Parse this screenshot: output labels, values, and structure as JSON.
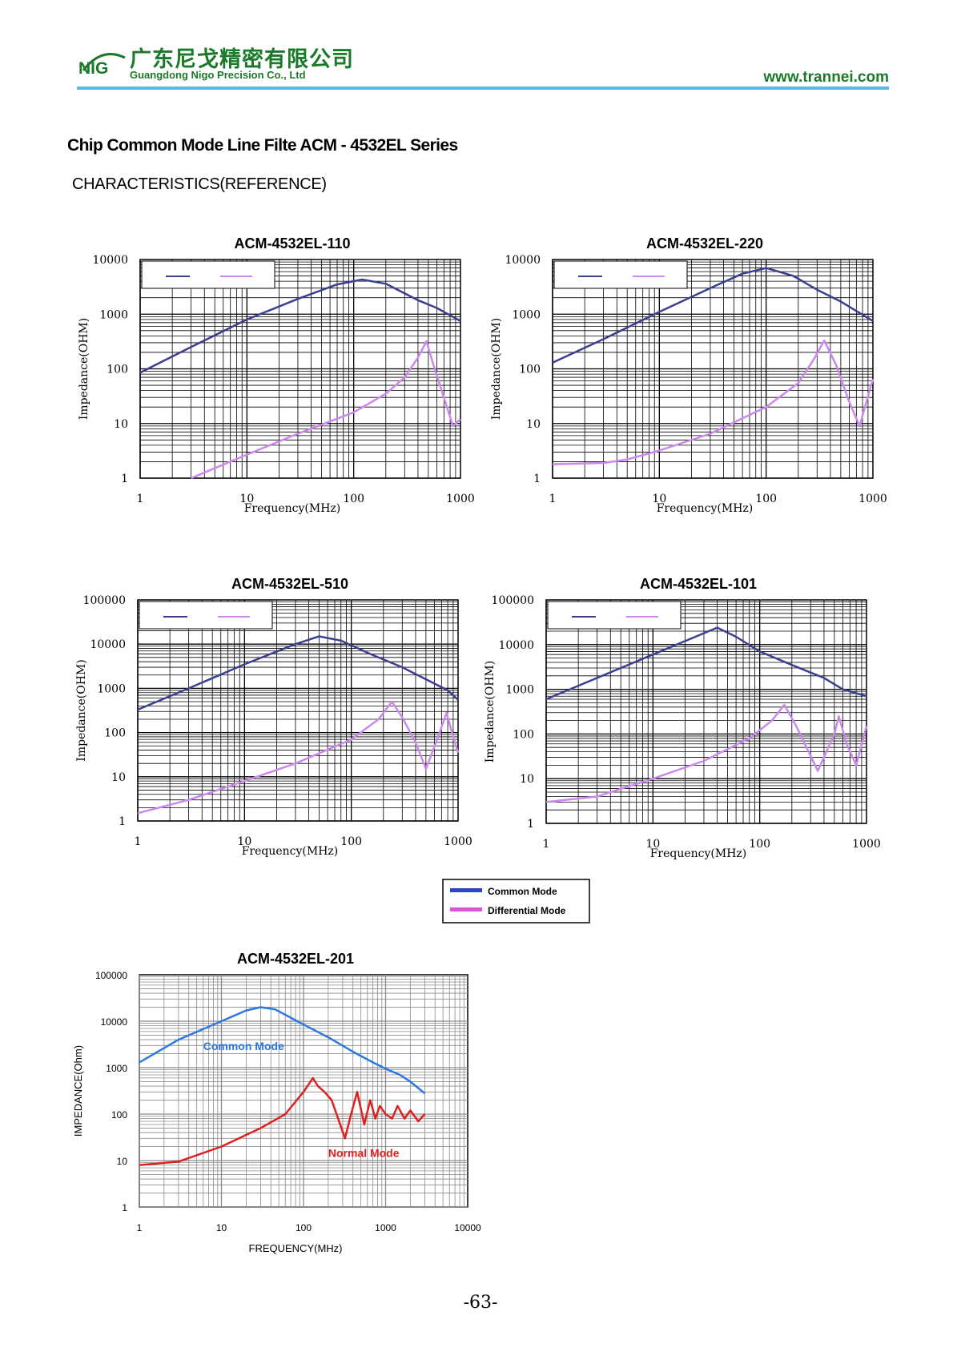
{
  "header": {
    "logo_text": "NIG",
    "company_cn": "广东尼戈精密有限公司",
    "company_en": "Guangdong Nigo Precision Co., Ltd",
    "website": "www.trannei.com"
  },
  "doc_title": "Chip Common Mode Line Filte ACM - 4532EL Series",
  "section_title": "CHARACTERISTICS(REFERENCE)",
  "shared_legend": {
    "items": [
      {
        "label": "Common Mode",
        "color": "#2a43c8"
      },
      {
        "label": "Differential Mode",
        "color": "#d856d8"
      }
    ]
  },
  "page_number": "-63-",
  "chart_data": [
    {
      "type": "line",
      "title": "ACM-4532EL-110",
      "xlabel": "Frequency(MHz)",
      "ylabel": "Impedance(OHM)",
      "x_scale": "log",
      "y_scale": "log",
      "xlim": [
        1,
        1000
      ],
      "ylim": [
        1,
        10000
      ],
      "x_ticks": [
        "1",
        "10",
        "100",
        "1000"
      ],
      "y_ticks": [
        "1",
        "10",
        "100",
        "1000",
        "10000"
      ],
      "grid": true,
      "legend": "top-left, lines only (labels not printed)",
      "series": [
        {
          "color": "#3a3f90",
          "points": [
            [
              1,
              85
            ],
            [
              3,
              250
            ],
            [
              10,
              800
            ],
            [
              30,
              1900
            ],
            [
              70,
              3500
            ],
            [
              120,
              4300
            ],
            [
              200,
              3600
            ],
            [
              400,
              1800
            ],
            [
              600,
              1300
            ],
            [
              1000,
              750
            ]
          ]
        },
        {
          "color": "#cc88ee",
          "points": [
            [
              3,
              1
            ],
            [
              10,
              2.7
            ],
            [
              30,
              6.5
            ],
            [
              100,
              16
            ],
            [
              200,
              35
            ],
            [
              300,
              70
            ],
            [
              400,
              160
            ],
            [
              480,
              320
            ],
            [
              550,
              130
            ],
            [
              700,
              30
            ],
            [
              850,
              9
            ],
            [
              1000,
              12
            ]
          ]
        }
      ]
    },
    {
      "type": "line",
      "title": "ACM-4532EL-220",
      "xlabel": "Frequency(MHz)",
      "ylabel": "Impedance(OHM)",
      "x_scale": "log",
      "y_scale": "log",
      "xlim": [
        1,
        1000
      ],
      "ylim": [
        1,
        10000
      ],
      "x_ticks": [
        "1",
        "10",
        "100",
        "1000"
      ],
      "y_ticks": [
        "1",
        "10",
        "100",
        "1000",
        "10000"
      ],
      "grid": true,
      "legend": "top-left, lines only (labels not printed)",
      "series": [
        {
          "color": "#3a3f90",
          "points": [
            [
              1,
              130
            ],
            [
              3,
              350
            ],
            [
              10,
              1100
            ],
            [
              30,
              3000
            ],
            [
              60,
              5500
            ],
            [
              100,
              7000
            ],
            [
              180,
              5000
            ],
            [
              300,
              2800
            ],
            [
              500,
              1700
            ],
            [
              1000,
              750
            ]
          ]
        },
        {
          "color": "#cc88ee",
          "points": [
            [
              1,
              1.8
            ],
            [
              3,
              1.9
            ],
            [
              5,
              2.2
            ],
            [
              10,
              3.2
            ],
            [
              30,
              6.5
            ],
            [
              100,
              20
            ],
            [
              200,
              55
            ],
            [
              280,
              150
            ],
            [
              350,
              330
            ],
            [
              450,
              120
            ],
            [
              600,
              25
            ],
            [
              750,
              9
            ],
            [
              1000,
              65
            ]
          ]
        }
      ]
    },
    {
      "type": "line",
      "title": "ACM-4532EL-510",
      "xlabel": "Frequency(MHz)",
      "ylabel": "Impedance(OHM)",
      "x_scale": "log",
      "y_scale": "log",
      "xlim": [
        1,
        1000
      ],
      "ylim": [
        1,
        100000
      ],
      "x_ticks": [
        "1",
        "10",
        "100",
        "1000"
      ],
      "y_ticks": [
        "1",
        "10",
        "100",
        "1000",
        "10000",
        "100000"
      ],
      "grid": true,
      "legend": "top-left, lines only (labels not printed)",
      "series": [
        {
          "color": "#3a3f90",
          "points": [
            [
              1,
              330
            ],
            [
              3,
              1000
            ],
            [
              10,
              3500
            ],
            [
              30,
              10000
            ],
            [
              50,
              15000
            ],
            [
              80,
              12000
            ],
            [
              150,
              6000
            ],
            [
              300,
              3000
            ],
            [
              500,
              1600
            ],
            [
              800,
              900
            ],
            [
              1000,
              550
            ]
          ]
        },
        {
          "color": "#cc88ee",
          "points": [
            [
              1,
              1.5
            ],
            [
              3,
              3
            ],
            [
              10,
              8
            ],
            [
              30,
              20
            ],
            [
              100,
              70
            ],
            [
              180,
              200
            ],
            [
              240,
              500
            ],
            [
              300,
              220
            ],
            [
              400,
              60
            ],
            [
              500,
              15
            ],
            [
              650,
              80
            ],
            [
              780,
              280
            ],
            [
              900,
              80
            ],
            [
              1000,
              35
            ]
          ]
        }
      ]
    },
    {
      "type": "line",
      "title": "ACM-4532EL-101",
      "xlabel": "Frequency(MHz)",
      "ylabel": "Impedance(OHM)",
      "x_scale": "log",
      "y_scale": "log",
      "xlim": [
        1,
        1000
      ],
      "ylim": [
        1,
        100000
      ],
      "x_ticks": [
        "1",
        "10",
        "100",
        "1000"
      ],
      "y_ticks": [
        "1",
        "10",
        "100",
        "1000",
        "10000",
        "100000"
      ],
      "grid": true,
      "legend": "top-left, lines only (labels not printed)",
      "series": [
        {
          "color": "#3a3f90",
          "points": [
            [
              1,
              600
            ],
            [
              3,
              1800
            ],
            [
              10,
              6000
            ],
            [
              25,
              15000
            ],
            [
              40,
              24000
            ],
            [
              60,
              15000
            ],
            [
              100,
              7000
            ],
            [
              200,
              3500
            ],
            [
              400,
              1800
            ],
            [
              600,
              1000
            ],
            [
              1000,
              700
            ]
          ]
        },
        {
          "color": "#cc88ee",
          "points": [
            [
              1,
              3
            ],
            [
              3,
              4
            ],
            [
              10,
              10
            ],
            [
              30,
              25
            ],
            [
              80,
              80
            ],
            [
              130,
              200
            ],
            [
              170,
              450
            ],
            [
              220,
              150
            ],
            [
              350,
              15
            ],
            [
              500,
              100
            ],
            [
              550,
              250
            ],
            [
              650,
              60
            ],
            [
              800,
              20
            ],
            [
              1000,
              150
            ]
          ]
        }
      ]
    },
    {
      "type": "line",
      "title": "ACM-4532EL-201",
      "xlabel": "FREQUENCY(MHz)",
      "ylabel": "IMPEDANCE(Ohm)",
      "x_scale": "log",
      "y_scale": "log",
      "xlim": [
        1,
        10000
      ],
      "ylim": [
        1,
        100000
      ],
      "x_ticks": [
        "1",
        "10",
        "100",
        "1000",
        "10000"
      ],
      "y_ticks": [
        "1",
        "10",
        "100",
        "1000",
        "10000",
        "100000"
      ],
      "grid": true,
      "series": [
        {
          "name": "Common Mode",
          "color": "#2a78e0",
          "points": [
            [
              1,
              1300
            ],
            [
              3,
              4000
            ],
            [
              10,
              10000
            ],
            [
              20,
              17000
            ],
            [
              30,
              20000
            ],
            [
              45,
              18000
            ],
            [
              100,
              8500
            ],
            [
              200,
              4500
            ],
            [
              400,
              2200
            ],
            [
              700,
              1300
            ],
            [
              1000,
              950
            ],
            [
              1500,
              700
            ],
            [
              2000,
              500
            ],
            [
              3000,
              280
            ]
          ]
        },
        {
          "name": "Normal Mode",
          "color": "#e02020",
          "points": [
            [
              1,
              8
            ],
            [
              3,
              9.5
            ],
            [
              10,
              20
            ],
            [
              30,
              50
            ],
            [
              60,
              100
            ],
            [
              100,
              300
            ],
            [
              130,
              600
            ],
            [
              150,
              400
            ],
            [
              180,
              300
            ],
            [
              220,
              200
            ],
            [
              280,
              60
            ],
            [
              320,
              30
            ],
            [
              380,
              100
            ],
            [
              450,
              300
            ],
            [
              550,
              60
            ],
            [
              650,
              200
            ],
            [
              750,
              80
            ],
            [
              850,
              150
            ],
            [
              1000,
              100
            ],
            [
              1200,
              80
            ],
            [
              1400,
              150
            ],
            [
              1700,
              80
            ],
            [
              2000,
              120
            ],
            [
              2500,
              70
            ],
            [
              3000,
              100
            ]
          ]
        }
      ]
    }
  ]
}
